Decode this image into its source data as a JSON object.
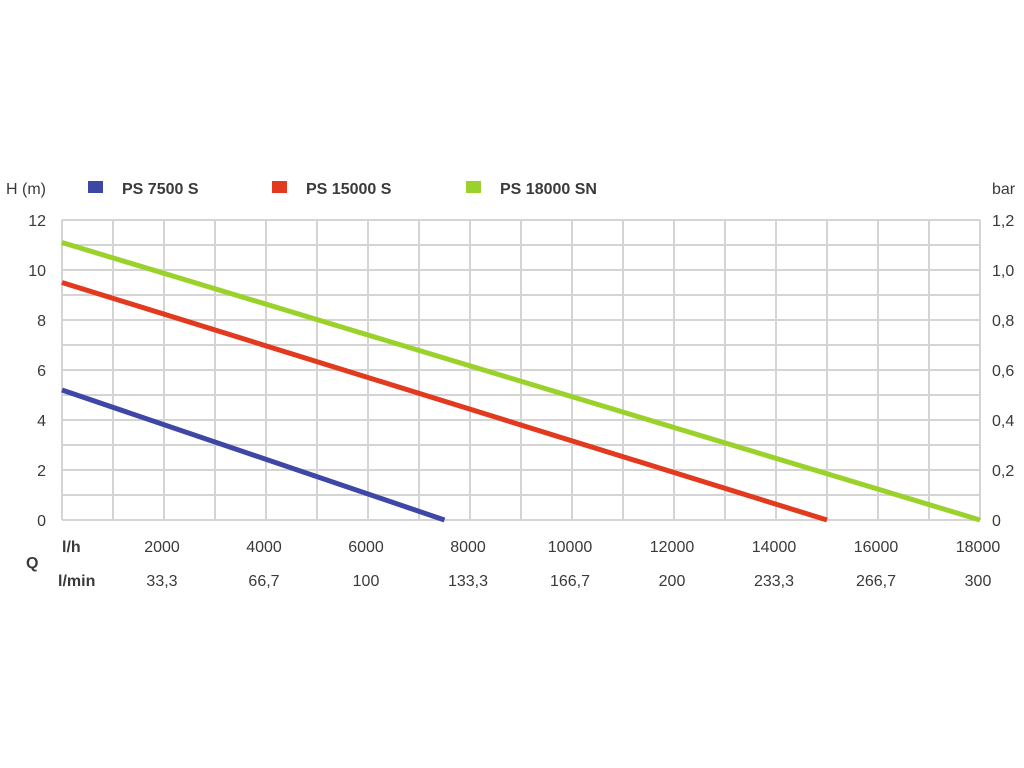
{
  "chart_data": {
    "type": "line",
    "ylabel_left": "H (m)",
    "ylabel_right": "bar",
    "x_unit_primary": "l/h",
    "x_unit_secondary": "l/min",
    "x_axis_symbol": "Q",
    "xlim": [
      0,
      18000
    ],
    "ylim": [
      0,
      12
    ],
    "x_ticks": [
      "2000",
      "4000",
      "6000",
      "8000",
      "10000",
      "12000",
      "14000",
      "16000",
      "18000"
    ],
    "x_ticks_secondary": [
      "33,3",
      "66,7",
      "100",
      "133,3",
      "166,7",
      "200",
      "233,3",
      "266,7",
      "300"
    ],
    "y_ticks_left": [
      "0",
      "2",
      "4",
      "6",
      "8",
      "10",
      "12"
    ],
    "y_ticks_right": [
      "0",
      "0,2",
      "0,4",
      "0,6",
      "0,8",
      "1,0",
      "1,2"
    ],
    "grid": true,
    "legend_position": "top",
    "series": [
      {
        "name": "PS 7500 S",
        "color": "#3f47a6",
        "points": [
          [
            0,
            5.2
          ],
          [
            7500,
            0
          ]
        ]
      },
      {
        "name": "PS 15000 S",
        "color": "#e23a1f",
        "points": [
          [
            0,
            9.5
          ],
          [
            15000,
            0
          ]
        ]
      },
      {
        "name": "PS 18000 SN",
        "color": "#9ad22b",
        "points": [
          [
            0,
            11.1
          ],
          [
            18000,
            0
          ]
        ]
      }
    ]
  }
}
